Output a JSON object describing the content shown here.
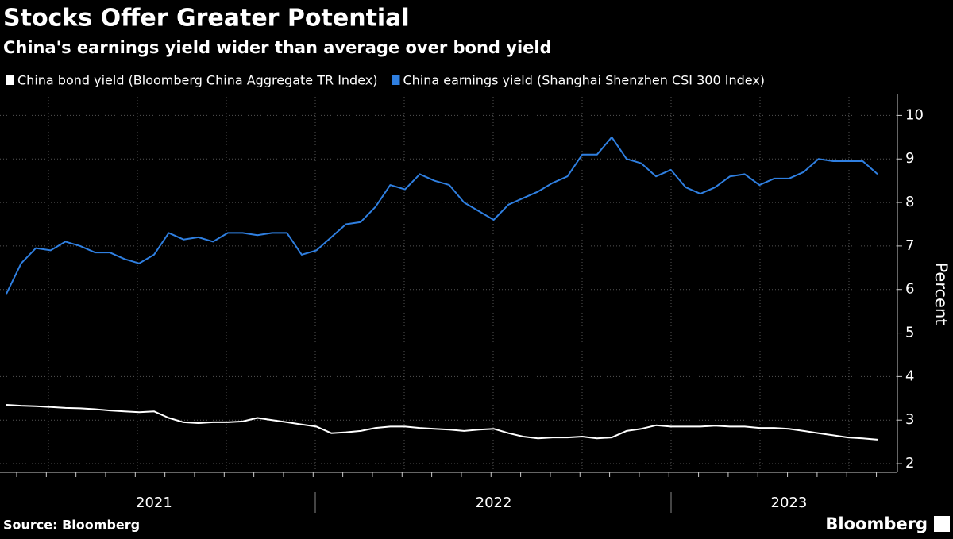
{
  "chart_data": {
    "type": "line",
    "title": "Stocks Offer Greater Potential",
    "subtitle": "China's earnings yield wider than average over bond yield",
    "y_label": "Percent",
    "source": "Source: Bloomberg",
    "brand": "Bloomberg",
    "legend": "top-left",
    "grid": true,
    "ylim": [
      1.8,
      10.5
    ],
    "yticks": [
      2,
      3,
      4,
      5,
      6,
      7,
      8,
      9,
      10
    ],
    "categories": [
      null,
      null,
      null,
      null,
      null,
      null,
      null,
      null,
      null,
      null,
      "2021",
      null,
      null,
      null,
      null,
      null,
      null,
      null,
      null,
      null,
      null,
      null,
      null,
      null,
      null,
      null,
      null,
      null,
      null,
      null,
      null,
      null,
      null,
      "2022",
      null,
      null,
      null,
      null,
      null,
      null,
      null,
      null,
      null,
      null,
      null,
      null,
      null,
      null,
      null,
      null,
      null,
      null,
      null,
      "2023",
      null,
      null,
      null,
      null,
      null,
      null
    ],
    "series": [
      {
        "name": "China bond yield (Bloomberg China Aggregate TR Index)",
        "color": "#ffffff",
        "values": [
          3.35,
          3.33,
          3.32,
          3.3,
          3.28,
          3.27,
          3.25,
          3.22,
          3.2,
          3.18,
          3.2,
          3.05,
          2.95,
          2.93,
          2.95,
          2.95,
          2.97,
          3.05,
          3.0,
          2.95,
          2.9,
          2.85,
          2.7,
          2.72,
          2.75,
          2.82,
          2.85,
          2.85,
          2.82,
          2.8,
          2.78,
          2.75,
          2.78,
          2.8,
          2.7,
          2.62,
          2.58,
          2.6,
          2.6,
          2.62,
          2.58,
          2.6,
          2.75,
          2.8,
          2.88,
          2.85,
          2.85,
          2.85,
          2.87,
          2.85,
          2.85,
          2.82,
          2.82,
          2.8,
          2.75,
          2.7,
          2.65,
          2.6,
          2.58,
          2.55
        ]
      },
      {
        "name": "China earnings yield (Shanghai Shenzhen CSI 300 Index)",
        "color": "#2f7fe0",
        "values": [
          5.9,
          6.6,
          6.95,
          6.9,
          7.1,
          7.0,
          6.85,
          6.85,
          6.7,
          6.6,
          6.8,
          7.3,
          7.15,
          7.2,
          7.1,
          7.3,
          7.3,
          7.25,
          7.3,
          7.3,
          6.8,
          6.9,
          7.2,
          7.5,
          7.55,
          7.9,
          8.4,
          8.3,
          8.65,
          8.5,
          8.4,
          8.0,
          7.8,
          7.6,
          7.95,
          8.1,
          8.25,
          8.45,
          8.6,
          9.1,
          9.1,
          9.5,
          9.0,
          8.9,
          8.6,
          8.75,
          8.35,
          8.2,
          8.35,
          8.6,
          8.65,
          8.4,
          8.55,
          8.55,
          8.7,
          9.0,
          8.95,
          8.95,
          8.95,
          8.65
        ]
      }
    ]
  }
}
